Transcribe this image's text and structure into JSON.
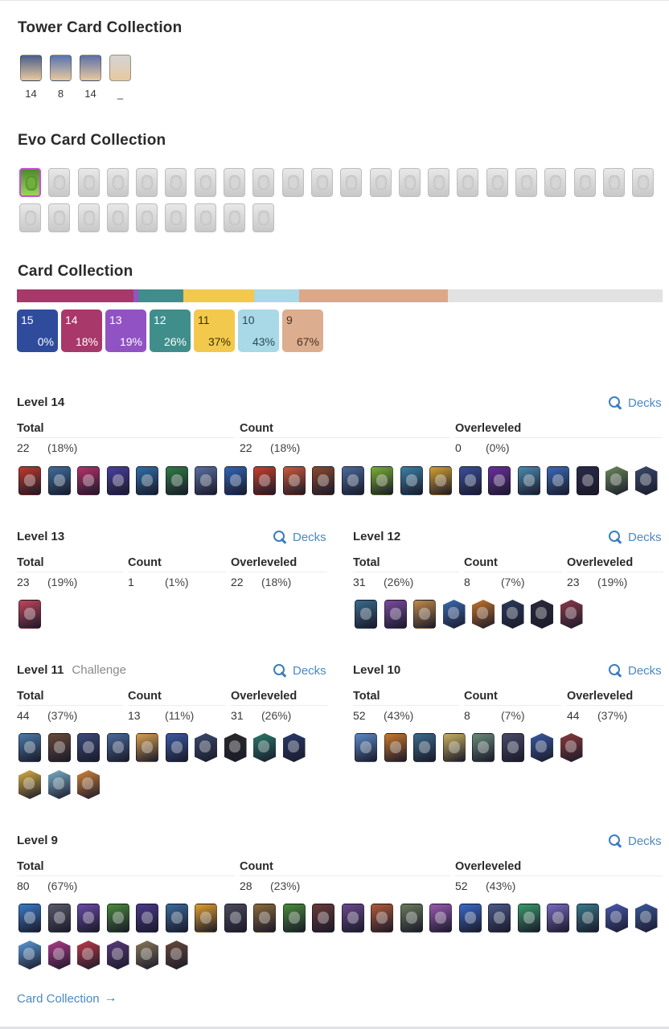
{
  "tower_section": {
    "title": "Tower Card Collection",
    "items": [
      {
        "label": "14",
        "color": "#4a5f8a"
      },
      {
        "label": "8",
        "color": "#5574b0"
      },
      {
        "label": "14",
        "color": "#5c6fa8"
      },
      {
        "label": "_",
        "color": "#d4d4d4"
      }
    ]
  },
  "evo_section": {
    "title": "Evo Card Collection",
    "total": 31,
    "unlocked": 1
  },
  "collection_section": {
    "title": "Card Collection",
    "progress_segments": [
      {
        "level": "14",
        "share": 0.18,
        "color": "#a8386a"
      },
      {
        "level": "13",
        "share": 0.008,
        "color": "#9055c0"
      },
      {
        "level": "12",
        "share": 0.07,
        "color": "#3f8e8b"
      },
      {
        "level": "11",
        "share": 0.11,
        "color": "#f2c94c"
      },
      {
        "level": "10",
        "share": 0.07,
        "color": "#a9d8e6"
      },
      {
        "level": "9",
        "share": 0.23,
        "color": "#dca889"
      },
      {
        "level": "rest",
        "share": 0.332,
        "color": "#e2e2e2"
      }
    ],
    "levels": [
      {
        "level": "15",
        "percent": "0%",
        "bg": "#2f4b9c",
        "fg": "#ffffff"
      },
      {
        "level": "14",
        "percent": "18%",
        "bg": "#a8386a",
        "fg": "#ffffff"
      },
      {
        "level": "13",
        "percent": "19%",
        "bg": "#9152c4",
        "fg": "#ffffff"
      },
      {
        "level": "12",
        "percent": "26%",
        "bg": "#3f8e8b",
        "fg": "#ffffff"
      },
      {
        "level": "11",
        "percent": "37%",
        "bg": "#f2c94c",
        "fg": "#3a3000"
      },
      {
        "level": "10",
        "percent": "43%",
        "bg": "#a9d8e6",
        "fg": "#2a4a55"
      },
      {
        "level": "9",
        "percent": "67%",
        "bg": "#dcae8f",
        "fg": "#4a3020"
      }
    ]
  },
  "labels": {
    "total": "Total",
    "count": "Count",
    "overleveled": "Overleveled",
    "decks": "Decks"
  },
  "level_sections": [
    {
      "title": "Level 14",
      "subtitle": "",
      "total": "22",
      "total_pct": "(18%)",
      "count": "22",
      "count_pct": "(18%)",
      "over": "0",
      "over_pct": "(0%)",
      "card_colors": [
        "#c0392b",
        "#3d6e9e",
        "#b8306a",
        "#4a3f9e",
        "#2f6fa8",
        "#2e7d46",
        "#5a6fa0",
        "#3065b8",
        "#c7402a",
        "#cc5a3a",
        "#8a4a2e",
        "#4a6a9a",
        "#7ab032",
        "#3a80a8",
        "#d4a030",
        "#3a4f9a",
        "#6a2f9e",
        "#4a8ab0",
        "#3a6ab8",
        "#2a2a4a",
        "#6a8a5a",
        "#3a4a6a"
      ],
      "card_shapes": [
        "r",
        "r",
        "r",
        "r",
        "r",
        "r",
        "r",
        "r",
        "r",
        "r",
        "r",
        "r",
        "r",
        "r",
        "r",
        "r",
        "r",
        "r",
        "r",
        "r",
        "h",
        "h"
      ]
    },
    {
      "title": "Level 13",
      "subtitle": "",
      "total": "23",
      "total_pct": "(19%)",
      "count": "1",
      "count_pct": "(1%)",
      "over": "22",
      "over_pct": "(18%)",
      "card_colors": [
        "#c0455a"
      ],
      "card_shapes": [
        "r"
      ]
    },
    {
      "title": "Level 12",
      "subtitle": "",
      "total": "31",
      "total_pct": "(26%)",
      "count": "8",
      "count_pct": "(7%)",
      "over": "23",
      "over_pct": "(19%)",
      "card_colors": [
        "#3a6a8a",
        "#7a4a9e",
        "#c08a4a",
        "#3a6ab0",
        "#c4742a",
        "#2a3a5a",
        "#2a2a3a",
        "#8a3a4a"
      ],
      "card_shapes": [
        "r",
        "r",
        "r",
        "h",
        "h",
        "h",
        "h",
        "h"
      ]
    },
    {
      "title": "Level 11",
      "subtitle": "Challenge",
      "total": "44",
      "total_pct": "(37%)",
      "count": "13",
      "count_pct": "(11%)",
      "over": "31",
      "over_pct": "(26%)",
      "card_colors": [
        "#4a7aa8",
        "#6a4a3a",
        "#3a4a7a",
        "#4a6a9a",
        "#d8a050",
        "#3a5aa0",
        "#3a4a6a",
        "#2a2a2a",
        "#2a7a6a",
        "#2a3a6a",
        "#d8b040",
        "#7ab0c8",
        "#d4843a"
      ],
      "card_shapes": [
        "r",
        "r",
        "r",
        "r",
        "r",
        "r",
        "h",
        "h",
        "h",
        "h",
        "h",
        "h",
        "h"
      ]
    },
    {
      "title": "Level 10",
      "subtitle": "",
      "total": "52",
      "total_pct": "(43%)",
      "count": "8",
      "count_pct": "(7%)",
      "over": "44",
      "over_pct": "(37%)",
      "card_colors": [
        "#5a8ac8",
        "#c8782a",
        "#3a6a8a",
        "#c8b060",
        "#6a8a7a",
        "#4a4a6a",
        "#3a5aa0",
        "#8a3a3a"
      ],
      "card_shapes": [
        "r",
        "r",
        "r",
        "r",
        "r",
        "r",
        "h",
        "h"
      ]
    },
    {
      "title": "Level 9",
      "subtitle": "",
      "total": "80",
      "total_pct": "(67%)",
      "count": "28",
      "count_pct": "(23%)",
      "over": "52",
      "over_pct": "(43%)",
      "card_colors": [
        "#3a7ac8",
        "#5a5a6a",
        "#6a4aa8",
        "#4a8a3a",
        "#4a3a8a",
        "#3a6a9a",
        "#e0a030",
        "#4a4a5a",
        "#8a6a3a",
        "#4a8a3a",
        "#6a3a3a",
        "#6a4a8a",
        "#b05a3a",
        "#6a7a5a",
        "#9a5ab0",
        "#3a6ac8",
        "#4a5a8a",
        "#3a9a6a",
        "#7a6ac0",
        "#3a7a8a",
        "#4a5ab0",
        "#3a5a9a",
        "#5a9ad8",
        "#b03a8a",
        "#c03a4a",
        "#5a3a7a",
        "#8a7a5a",
        "#6a4a3a"
      ],
      "card_shapes": [
        "r",
        "r",
        "r",
        "r",
        "r",
        "r",
        "r",
        "r",
        "r",
        "r",
        "r",
        "r",
        "r",
        "r",
        "r",
        "r",
        "r",
        "r",
        "r",
        "r",
        "h",
        "h",
        "h",
        "h",
        "h",
        "h",
        "h",
        "h"
      ]
    }
  ],
  "footer_link": "Card Collection"
}
